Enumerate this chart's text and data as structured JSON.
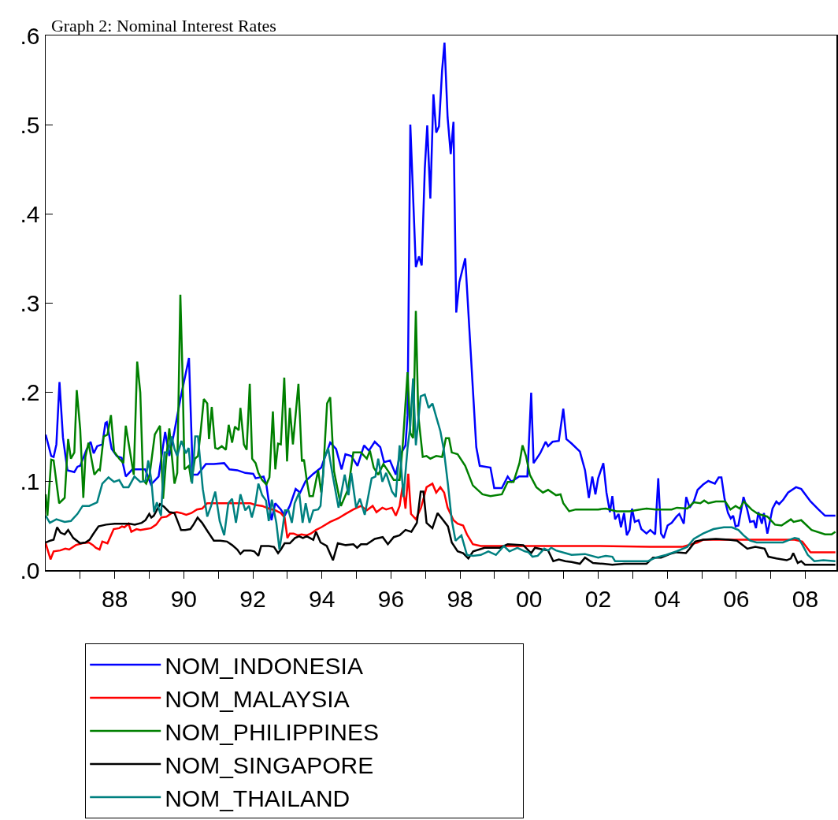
{
  "chart_data": {
    "type": "line",
    "title": "Graph 2: Nominal Interest Rates",
    "xlim": [
      1986,
      2008.9
    ],
    "xticks": [
      {
        "value": 1987,
        "label": null
      },
      {
        "value": 1988,
        "label": "88"
      },
      {
        "value": 1989,
        "label": null
      },
      {
        "value": 1990,
        "label": "90"
      },
      {
        "value": 1991,
        "label": null
      },
      {
        "value": 1992,
        "label": "92"
      },
      {
        "value": 1993,
        "label": null
      },
      {
        "value": 1994,
        "label": "94"
      },
      {
        "value": 1995,
        "label": null
      },
      {
        "value": 1996,
        "label": "96"
      },
      {
        "value": 1997,
        "label": null
      },
      {
        "value": 1998,
        "label": "98"
      },
      {
        "value": 1999,
        "label": null
      },
      {
        "value": 2000,
        "label": "00"
      },
      {
        "value": 2001,
        "label": null
      },
      {
        "value": 2002,
        "label": "02"
      },
      {
        "value": 2003,
        "label": null
      },
      {
        "value": 2004,
        "label": "04"
      },
      {
        "value": 2005,
        "label": null
      },
      {
        "value": 2006,
        "label": "06"
      },
      {
        "value": 2007,
        "label": null
      },
      {
        "value": 2008,
        "label": "08"
      }
    ],
    "ylim": [
      0,
      0.6
    ],
    "yticks": [
      {
        "value": 0,
        "label": ".0"
      },
      {
        "value": 0.1,
        "label": ".1"
      },
      {
        "value": 0.2,
        "label": ".2"
      },
      {
        "value": 0.3,
        "label": ".3"
      },
      {
        "value": 0.4,
        "label": ".4"
      },
      {
        "value": 0.5,
        "label": ".5"
      },
      {
        "value": 0.6,
        "label": ".6"
      }
    ],
    "grid": false,
    "legend": "bottom",
    "series": [
      {
        "name": "NOM_INDONESIA",
        "color": "#0000ff",
        "x": [
          1986.0,
          1986.16,
          1986.23,
          1986.31,
          1986.4,
          1986.5,
          1986.63,
          1986.83,
          1986.92,
          1987.0,
          1987.11,
          1987.18,
          1987.3,
          1987.39,
          1987.49,
          1987.64,
          1987.73,
          1987.77,
          1987.91,
          1988.06,
          1988.2,
          1988.32,
          1988.51,
          1988.78,
          1988.88,
          1989.05,
          1989.27,
          1989.46,
          1989.58,
          1989.73,
          1989.9,
          1990.15,
          1990.26,
          1990.4,
          1990.64,
          1990.87,
          1991.17,
          1991.32,
          1991.55,
          1991.78,
          1992.01,
          1992.08,
          1992.31,
          1992.39,
          1992.54,
          1992.65,
          1992.81,
          1992.92,
          1993.07,
          1993.24,
          1993.37,
          1993.53,
          1993.75,
          1993.98,
          1994.07,
          1994.24,
          1994.41,
          1994.57,
          1994.68,
          1994.85,
          1995.03,
          1995.22,
          1995.36,
          1995.53,
          1995.69,
          1995.8,
          1995.97,
          1996.14,
          1996.25,
          1996.42,
          1996.48,
          1996.56,
          1996.72,
          1996.81,
          1996.89,
          1996.98,
          1997.05,
          1997.14,
          1997.23,
          1997.31,
          1997.39,
          1997.48,
          1997.55,
          1997.64,
          1997.73,
          1997.81,
          1997.89,
          1997.98,
          1998.15,
          1998.47,
          1998.57,
          1998.88,
          1998.99,
          1999.21,
          1999.38,
          1999.49,
          1999.71,
          1999.95,
          2000.06,
          2000.13,
          2000.32,
          2000.48,
          2000.55,
          2000.68,
          2000.86,
          2000.99,
          2001.08,
          2001.23,
          2001.47,
          2001.62,
          2001.73,
          2001.83,
          2001.92,
          2002.0,
          2002.15,
          2002.24,
          2002.34,
          2002.41,
          2002.49,
          2002.59,
          2002.66,
          2002.75,
          2002.83,
          2002.91,
          2002.98,
          2003.06,
          2003.17,
          2003.25,
          2003.4,
          2003.51,
          2003.65,
          2003.74,
          2003.82,
          2003.9,
          2004.01,
          2004.13,
          2004.27,
          2004.35,
          2004.48,
          2004.55,
          2004.65,
          2004.77,
          2004.88,
          2005.04,
          2005.19,
          2005.38,
          2005.49,
          2005.57,
          2005.66,
          2005.76,
          2005.84,
          2005.91,
          2005.98,
          2006.06,
          2006.21,
          2006.31,
          2006.4,
          2006.51,
          2006.57,
          2006.64,
          2006.74,
          2006.8,
          2006.9,
          2007.05,
          2007.16,
          2007.24,
          2007.36,
          2007.5,
          2007.73,
          2007.88,
          2008.15,
          2008.38,
          2008.57,
          2008.87
        ],
        "values": [
          0.152,
          0.128,
          0.127,
          0.141,
          0.211,
          0.149,
          0.112,
          0.11,
          0.116,
          0.117,
          0.128,
          0.135,
          0.144,
          0.131,
          0.139,
          0.141,
          0.165,
          0.166,
          0.136,
          0.128,
          0.126,
          0.105,
          0.113,
          0.113,
          0.113,
          0.096,
          0.105,
          0.155,
          0.128,
          0.156,
          0.192,
          0.238,
          0.107,
          0.107,
          0.119,
          0.119,
          0.12,
          0.113,
          0.112,
          0.109,
          0.108,
          0.103,
          0.105,
          0.096,
          0.056,
          0.075,
          0.068,
          0.061,
          0.072,
          0.091,
          0.087,
          0.1,
          0.108,
          0.115,
          0.125,
          0.143,
          0.136,
          0.113,
          0.13,
          0.128,
          0.117,
          0.14,
          0.134,
          0.144,
          0.138,
          0.121,
          0.123,
          0.107,
          0.128,
          0.14,
          0.174,
          0.5,
          0.34,
          0.352,
          0.342,
          0.451,
          0.499,
          0.417,
          0.534,
          0.491,
          0.498,
          0.561,
          0.592,
          0.508,
          0.467,
          0.503,
          0.289,
          0.323,
          0.35,
          0.138,
          0.117,
          0.115,
          0.092,
          0.092,
          0.105,
          0.099,
          0.105,
          0.105,
          0.199,
          0.12,
          0.131,
          0.144,
          0.139,
          0.144,
          0.145,
          0.181,
          0.147,
          0.142,
          0.133,
          0.112,
          0.081,
          0.105,
          0.085,
          0.103,
          0.12,
          0.087,
          0.065,
          0.083,
          0.057,
          0.063,
          0.048,
          0.064,
          0.039,
          0.045,
          0.069,
          0.054,
          0.056,
          0.046,
          0.041,
          0.045,
          0.04,
          0.103,
          0.041,
          0.036,
          0.05,
          0.053,
          0.06,
          0.063,
          0.052,
          0.082,
          0.07,
          0.077,
          0.09,
          0.096,
          0.1,
          0.097,
          0.104,
          0.104,
          0.08,
          0.064,
          0.058,
          0.061,
          0.049,
          0.05,
          0.082,
          0.069,
          0.054,
          0.055,
          0.047,
          0.065,
          0.052,
          0.064,
          0.041,
          0.069,
          0.077,
          0.074,
          0.079,
          0.087,
          0.093,
          0.091,
          0.077,
          0.068,
          0.061,
          0.061
        ]
      },
      {
        "name": "NOM_MALAYSIA",
        "color": "#ff0000",
        "x": [
          1986.0,
          1986.14,
          1986.23,
          1986.42,
          1986.57,
          1986.68,
          1986.87,
          1987.06,
          1987.25,
          1987.37,
          1987.45,
          1987.56,
          1987.64,
          1987.79,
          1987.97,
          1988.13,
          1988.21,
          1988.28,
          1988.4,
          1988.48,
          1988.63,
          1988.74,
          1988.9,
          1989.05,
          1989.2,
          1989.35,
          1989.5,
          1989.65,
          1989.8,
          1989.92,
          1990.07,
          1990.22,
          1990.38,
          1990.53,
          1990.68,
          1990.87,
          1991.1,
          1991.29,
          1991.55,
          1991.78,
          1991.93,
          1992.08,
          1992.27,
          1992.46,
          1992.65,
          1992.81,
          1992.92,
          1993.0,
          1993.07,
          1993.18,
          1993.3,
          1993.41,
          1993.56,
          1993.68,
          1993.83,
          1993.98,
          1994.24,
          1994.47,
          1994.68,
          1994.91,
          1995.13,
          1995.3,
          1995.47,
          1995.58,
          1995.75,
          1995.86,
          1996.03,
          1996.14,
          1996.25,
          1996.34,
          1996.42,
          1996.5,
          1996.58,
          1996.72,
          1996.87,
          1997.03,
          1997.2,
          1997.31,
          1997.43,
          1997.54,
          1997.64,
          1997.81,
          1997.93,
          1998.09,
          1998.2,
          1998.37,
          1998.6,
          1999.0,
          1999.72,
          2002.0,
          2003.5,
          2004.43,
          2004.88,
          2005.04,
          2005.41,
          2006.55,
          2007.69,
          2007.91,
          2008.15,
          2008.87
        ],
        "values": [
          0.03,
          0.012,
          0.021,
          0.022,
          0.024,
          0.023,
          0.028,
          0.03,
          0.031,
          0.028,
          0.025,
          0.023,
          0.032,
          0.03,
          0.046,
          0.047,
          0.049,
          0.048,
          0.052,
          0.043,
          0.046,
          0.045,
          0.046,
          0.047,
          0.051,
          0.059,
          0.06,
          0.064,
          0.065,
          0.064,
          0.062,
          0.064,
          0.068,
          0.069,
          0.075,
          0.075,
          0.075,
          0.075,
          0.075,
          0.075,
          0.075,
          0.073,
          0.072,
          0.069,
          0.067,
          0.064,
          0.059,
          0.036,
          0.041,
          0.041,
          0.039,
          0.04,
          0.039,
          0.041,
          0.045,
          0.048,
          0.054,
          0.058,
          0.063,
          0.068,
          0.072,
          0.067,
          0.072,
          0.065,
          0.07,
          0.068,
          0.07,
          0.061,
          0.072,
          0.095,
          0.069,
          0.108,
          0.063,
          0.057,
          0.07,
          0.093,
          0.097,
          0.087,
          0.093,
          0.087,
          0.07,
          0.056,
          0.052,
          0.05,
          0.04,
          0.029,
          0.027,
          0.027,
          0.027,
          0.027,
          0.026,
          0.026,
          0.031,
          0.034,
          0.034,
          0.034,
          0.034,
          0.032,
          0.02,
          0.02
        ]
      },
      {
        "name": "NOM_PHILIPPINES",
        "color": "#008000",
        "x": [
          1986.0,
          1986.05,
          1986.16,
          1986.23,
          1986.39,
          1986.55,
          1986.65,
          1986.73,
          1986.83,
          1986.9,
          1987.0,
          1987.09,
          1987.15,
          1987.24,
          1987.41,
          1987.53,
          1987.57,
          1987.68,
          1987.79,
          1987.89,
          1987.98,
          1988.13,
          1988.25,
          1988.32,
          1988.55,
          1988.65,
          1988.74,
          1988.82,
          1988.91,
          1989.01,
          1989.16,
          1989.31,
          1989.4,
          1989.49,
          1989.58,
          1989.73,
          1989.81,
          1989.9,
          1989.96,
          1990.02,
          1990.15,
          1990.22,
          1990.32,
          1990.41,
          1990.49,
          1990.58,
          1990.68,
          1990.73,
          1990.81,
          1990.91,
          1990.99,
          1991.1,
          1991.22,
          1991.3,
          1991.4,
          1991.48,
          1991.59,
          1991.64,
          1991.74,
          1991.82,
          1991.91,
          1991.98,
          1992.08,
          1992.16,
          1992.27,
          1992.39,
          1992.48,
          1992.58,
          1992.65,
          1992.73,
          1992.81,
          1992.91,
          1992.99,
          1993.07,
          1993.16,
          1993.32,
          1993.42,
          1993.48,
          1993.56,
          1993.64,
          1993.74,
          1993.89,
          1993.98,
          1994.03,
          1994.15,
          1994.24,
          1994.35,
          1994.55,
          1994.76,
          1994.91,
          1995.13,
          1995.3,
          1995.39,
          1995.5,
          1995.63,
          1995.78,
          1995.92,
          1996.08,
          1996.25,
          1996.34,
          1996.48,
          1996.56,
          1996.64,
          1996.72,
          1996.79,
          1996.92,
          1997.03,
          1997.14,
          1997.31,
          1997.48,
          1997.59,
          1997.68,
          1997.76,
          1997.93,
          1998.15,
          1998.37,
          1998.65,
          1998.88,
          1999.21,
          1999.38,
          1999.55,
          1999.72,
          1999.81,
          1999.91,
          2000.02,
          2000.21,
          2000.4,
          2000.55,
          2000.78,
          2000.91,
          2000.99,
          2001.16,
          2001.35,
          2001.62,
          2002.0,
          2002.22,
          2002.53,
          2002.91,
          2003.21,
          2003.4,
          2003.67,
          2004.13,
          2004.28,
          2004.58,
          2004.77,
          2004.96,
          2005.07,
          2005.19,
          2005.41,
          2005.68,
          2005.83,
          2005.98,
          2006.1,
          2006.22,
          2006.44,
          2006.63,
          2006.9,
          2007.12,
          2007.31,
          2007.58,
          2007.66,
          2007.88,
          2008.18,
          2008.57,
          2008.76,
          2008.87
        ],
        "values": [
          0.085,
          0.061,
          0.124,
          0.123,
          0.075,
          0.081,
          0.147,
          0.125,
          0.132,
          0.202,
          0.158,
          0.081,
          0.127,
          0.143,
          0.107,
          0.113,
          0.112,
          0.15,
          0.152,
          0.174,
          0.133,
          0.125,
          0.12,
          0.162,
          0.107,
          0.234,
          0.199,
          0.101,
          0.097,
          0.107,
          0.152,
          0.162,
          0.08,
          0.125,
          0.159,
          0.097,
          0.109,
          0.309,
          0.224,
          0.113,
          0.117,
          0.099,
          0.125,
          0.128,
          0.156,
          0.192,
          0.187,
          0.147,
          0.183,
          0.137,
          0.136,
          0.139,
          0.135,
          0.163,
          0.143,
          0.161,
          0.157,
          0.182,
          0.141,
          0.135,
          0.209,
          0.125,
          0.12,
          0.109,
          0.101,
          0.096,
          0.104,
          0.178,
          0.113,
          0.142,
          0.141,
          0.216,
          0.122,
          0.182,
          0.141,
          0.209,
          0.122,
          0.124,
          0.101,
          0.083,
          0.083,
          0.112,
          0.087,
          0.105,
          0.187,
          0.194,
          0.111,
          0.072,
          0.091,
          0.132,
          0.132,
          0.125,
          0.134,
          0.115,
          0.107,
          0.119,
          0.111,
          0.101,
          0.101,
          0.14,
          0.222,
          0.154,
          0.148,
          0.291,
          0.174,
          0.127,
          0.128,
          0.125,
          0.128,
          0.127,
          0.148,
          0.148,
          0.132,
          0.13,
          0.117,
          0.095,
          0.085,
          0.083,
          0.085,
          0.099,
          0.099,
          0.12,
          0.14,
          0.128,
          0.107,
          0.093,
          0.087,
          0.09,
          0.084,
          0.085,
          0.075,
          0.066,
          0.068,
          0.068,
          0.068,
          0.069,
          0.066,
          0.066,
          0.068,
          0.069,
          0.068,
          0.068,
          0.07,
          0.069,
          0.076,
          0.075,
          0.078,
          0.075,
          0.077,
          0.077,
          0.068,
          0.072,
          0.069,
          0.077,
          0.068,
          0.063,
          0.06,
          0.051,
          0.05,
          0.057,
          0.054,
          0.056,
          0.045,
          0.04,
          0.04,
          0.043
        ]
      },
      {
        "name": "NOM_SINGAPORE",
        "color": "#000000",
        "x": [
          1986.0,
          1986.13,
          1986.23,
          1986.33,
          1986.43,
          1986.55,
          1986.65,
          1986.8,
          1987.0,
          1987.15,
          1987.27,
          1987.37,
          1987.53,
          1987.75,
          1988.0,
          1988.2,
          1988.43,
          1988.58,
          1988.78,
          1988.89,
          1989.0,
          1989.06,
          1989.13,
          1989.31,
          1989.43,
          1989.58,
          1989.73,
          1989.84,
          1989.92,
          1990.04,
          1990.19,
          1990.28,
          1990.4,
          1990.53,
          1990.68,
          1990.87,
          1991.06,
          1991.25,
          1991.4,
          1991.55,
          1991.64,
          1991.74,
          1991.93,
          1992.04,
          1992.16,
          1992.24,
          1992.46,
          1992.61,
          1992.73,
          1992.81,
          1992.92,
          1993.07,
          1993.22,
          1993.34,
          1993.45,
          1993.56,
          1993.75,
          1993.83,
          1993.96,
          1994.14,
          1994.32,
          1994.46,
          1994.69,
          1994.91,
          1995.02,
          1995.13,
          1995.3,
          1995.53,
          1995.76,
          1995.91,
          1996.08,
          1996.25,
          1996.42,
          1996.59,
          1996.75,
          1996.86,
          1996.94,
          1997.03,
          1997.2,
          1997.35,
          1997.49,
          1997.65,
          1997.76,
          1997.93,
          1998.09,
          1998.24,
          1998.38,
          1998.71,
          1999.16,
          1999.38,
          1999.83,
          2000.06,
          2000.17,
          2000.4,
          2000.55,
          2000.7,
          2000.86,
          2001.05,
          2001.23,
          2001.47,
          2001.62,
          2001.85,
          2002.15,
          2002.41,
          2002.75,
          2003.13,
          2003.4,
          2003.59,
          2003.82,
          2004.08,
          2004.27,
          2004.54,
          2004.65,
          2004.81,
          2005.04,
          2005.41,
          2005.79,
          2006.02,
          2006.32,
          2006.55,
          2006.82,
          2006.93,
          2007.16,
          2007.46,
          2007.58,
          2007.65,
          2007.78,
          2007.88,
          2007.99,
          2008.87
        ],
        "values": [
          0.031,
          0.033,
          0.034,
          0.048,
          0.042,
          0.04,
          0.045,
          0.036,
          0.03,
          0.031,
          0.034,
          0.04,
          0.049,
          0.051,
          0.052,
          0.052,
          0.052,
          0.051,
          0.053,
          0.056,
          0.063,
          0.059,
          0.061,
          0.074,
          0.071,
          0.065,
          0.064,
          0.053,
          0.045,
          0.045,
          0.046,
          0.051,
          0.059,
          0.053,
          0.044,
          0.033,
          0.033,
          0.032,
          0.028,
          0.023,
          0.018,
          0.022,
          0.022,
          0.021,
          0.016,
          0.027,
          0.027,
          0.026,
          0.019,
          0.023,
          0.03,
          0.03,
          0.036,
          0.038,
          0.036,
          0.038,
          0.034,
          0.043,
          0.031,
          0.027,
          0.011,
          0.03,
          0.028,
          0.029,
          0.025,
          0.029,
          0.029,
          0.035,
          0.037,
          0.029,
          0.037,
          0.039,
          0.045,
          0.043,
          0.053,
          0.088,
          0.088,
          0.053,
          0.047,
          0.064,
          0.057,
          0.049,
          0.031,
          0.021,
          0.019,
          0.013,
          0.021,
          0.025,
          0.025,
          0.029,
          0.028,
          0.019,
          0.025,
          0.023,
          0.022,
          0.01,
          0.012,
          0.01,
          0.009,
          0.007,
          0.014,
          0.008,
          0.007,
          0.006,
          0.007,
          0.007,
          0.007,
          0.014,
          0.014,
          0.018,
          0.02,
          0.019,
          0.024,
          0.032,
          0.034,
          0.035,
          0.034,
          0.033,
          0.024,
          0.026,
          0.024,
          0.015,
          0.013,
          0.011,
          0.013,
          0.019,
          0.008,
          0.01,
          0.006,
          0.006
        ]
      },
      {
        "name": "NOM_THAILAND",
        "color": "#008080",
        "x": [
          1986.0,
          1986.12,
          1986.31,
          1986.55,
          1986.73,
          1986.92,
          1987.07,
          1987.26,
          1987.49,
          1987.64,
          1987.82,
          1987.98,
          1988.13,
          1988.25,
          1988.4,
          1988.57,
          1988.74,
          1988.89,
          1988.97,
          1989.06,
          1989.14,
          1989.22,
          1989.34,
          1989.44,
          1989.54,
          1989.65,
          1989.73,
          1989.81,
          1989.93,
          1990.06,
          1990.14,
          1990.24,
          1990.33,
          1990.41,
          1990.55,
          1990.68,
          1990.79,
          1990.91,
          1991.04,
          1991.17,
          1991.29,
          1991.4,
          1991.51,
          1991.64,
          1991.78,
          1991.89,
          1991.97,
          1992.07,
          1992.16,
          1992.27,
          1992.38,
          1992.46,
          1992.55,
          1992.68,
          1992.77,
          1992.86,
          1992.93,
          1993.03,
          1993.13,
          1993.21,
          1993.34,
          1993.44,
          1993.53,
          1993.64,
          1993.75,
          1993.89,
          1993.96,
          1994.07,
          1994.18,
          1994.29,
          1994.48,
          1994.66,
          1994.77,
          1994.85,
          1994.99,
          1995.1,
          1995.24,
          1995.44,
          1995.55,
          1995.63,
          1995.75,
          1995.86,
          1996.03,
          1996.14,
          1996.25,
          1996.36,
          1996.48,
          1996.56,
          1996.64,
          1996.72,
          1996.86,
          1996.98,
          1997.09,
          1997.2,
          1997.31,
          1997.43,
          1997.53,
          1997.65,
          1997.76,
          1997.87,
          1998.04,
          1998.2,
          1998.38,
          1998.6,
          1998.82,
          1999.04,
          1999.27,
          1999.43,
          1999.66,
          1999.88,
          1999.98,
          2000.1,
          2000.25,
          2000.44,
          2000.55,
          2000.64,
          2000.78,
          2001.05,
          2001.23,
          2001.62,
          2002.0,
          2002.22,
          2002.41,
          2002.49,
          2002.91,
          2003.44,
          2003.67,
          2003.97,
          2004.27,
          2004.58,
          2004.77,
          2005.04,
          2005.34,
          2005.64,
          2005.87,
          2006.06,
          2006.21,
          2006.4,
          2006.59,
          2006.93,
          2007.35,
          2007.54,
          2007.69,
          2007.81,
          2007.92,
          2008.07,
          2008.26,
          2008.52,
          2008.87
        ],
        "values": [
          0.061,
          0.053,
          0.057,
          0.054,
          0.055,
          0.063,
          0.072,
          0.072,
          0.076,
          0.097,
          0.104,
          0.099,
          0.101,
          0.093,
          0.093,
          0.105,
          0.099,
          0.1,
          0.123,
          0.101,
          0.065,
          0.076,
          0.061,
          0.132,
          0.132,
          0.15,
          0.136,
          0.128,
          0.145,
          0.131,
          0.137,
          0.097,
          0.15,
          0.15,
          0.091,
          0.06,
          0.072,
          0.088,
          0.055,
          0.039,
          0.075,
          0.08,
          0.053,
          0.085,
          0.067,
          0.072,
          0.059,
          0.074,
          0.097,
          0.084,
          0.078,
          0.055,
          0.079,
          0.053,
          0.023,
          0.046,
          0.067,
          0.067,
          0.053,
          0.075,
          0.087,
          0.053,
          0.075,
          0.053,
          0.067,
          0.068,
          0.072,
          0.125,
          0.137,
          0.111,
          0.07,
          0.107,
          0.084,
          0.109,
          0.07,
          0.08,
          0.062,
          0.103,
          0.105,
          0.125,
          0.099,
          0.109,
          0.088,
          0.082,
          0.14,
          0.082,
          0.137,
          0.162,
          0.215,
          0.14,
          0.195,
          0.197,
          0.182,
          0.187,
          0.172,
          0.156,
          0.135,
          0.096,
          0.056,
          0.033,
          0.039,
          0.017,
          0.016,
          0.017,
          0.021,
          0.017,
          0.027,
          0.021,
          0.025,
          0.021,
          0.02,
          0.015,
          0.016,
          0.024,
          0.022,
          0.025,
          0.022,
          0.019,
          0.017,
          0.018,
          0.014,
          0.016,
          0.015,
          0.01,
          0.01,
          0.01,
          0.014,
          0.017,
          0.021,
          0.026,
          0.035,
          0.041,
          0.046,
          0.048,
          0.048,
          0.045,
          0.039,
          0.033,
          0.031,
          0.031,
          0.031,
          0.034,
          0.036,
          0.035,
          0.028,
          0.017,
          0.01,
          0.011,
          0.01
        ]
      }
    ]
  }
}
